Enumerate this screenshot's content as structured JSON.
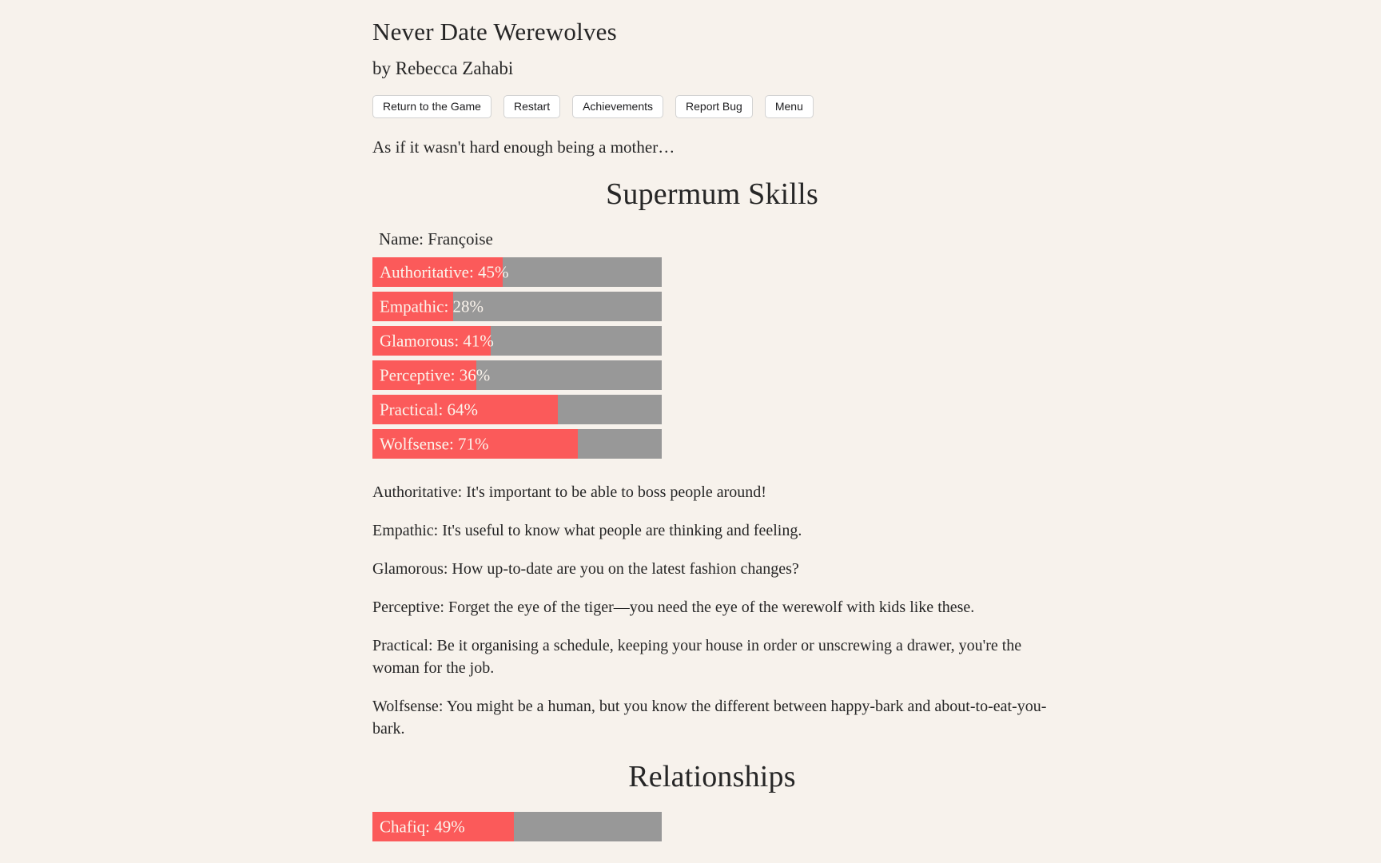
{
  "colors": {
    "background": "#f7f2ec",
    "bar_fill": "#fb5a5a",
    "bar_track": "#989898",
    "bar_label_text": "#fbf4ec",
    "body_text": "#262626",
    "button_background": "#ffffff",
    "button_border": "#d2d2d2"
  },
  "header": {
    "title": "Never Date Werewolves",
    "byline": "by Rebecca Zahabi"
  },
  "toolbar": {
    "buttons": [
      "Return to the Game",
      "Restart",
      "Achievements",
      "Report Bug",
      "Menu"
    ]
  },
  "intro": "As if it wasn't hard enough being a mother…",
  "skills": {
    "heading": "Supermum Skills",
    "name": "Name: Françoise",
    "bars": [
      {
        "key": "authoritative",
        "label": "Authoritative: 45%",
        "percent": 45
      },
      {
        "key": "empathic",
        "label": "Empathic: 28%",
        "percent": 28
      },
      {
        "key": "glamorous",
        "label": "Glamorous: 41%",
        "percent": 41
      },
      {
        "key": "perceptive",
        "label": "Perceptive: 36%",
        "percent": 36
      },
      {
        "key": "practical",
        "label": "Practical: 64%",
        "percent": 64
      },
      {
        "key": "wolfsense",
        "label": "Wolfsense: 71%",
        "percent": 71
      }
    ],
    "descriptions": [
      "Authoritative: It's important to be able to boss people around!",
      "Empathic: It's useful to know what people are thinking and feeling.",
      "Glamorous: How up-to-date are you on the latest fashion changes?",
      "Perceptive: Forget the eye of the tiger—you need the eye of the werewolf with kids like these.",
      "Practical: Be it organising a schedule, keeping your house in order or unscrewing a drawer, you're the woman for the job.",
      "Wolfsense: You might be a human, but you know the different between happy-bark and about-to-eat-you-bark."
    ]
  },
  "relationships": {
    "heading": "Relationships",
    "bars": [
      {
        "key": "chafiq",
        "label": "Chafiq: 49%",
        "percent": 49
      }
    ]
  }
}
